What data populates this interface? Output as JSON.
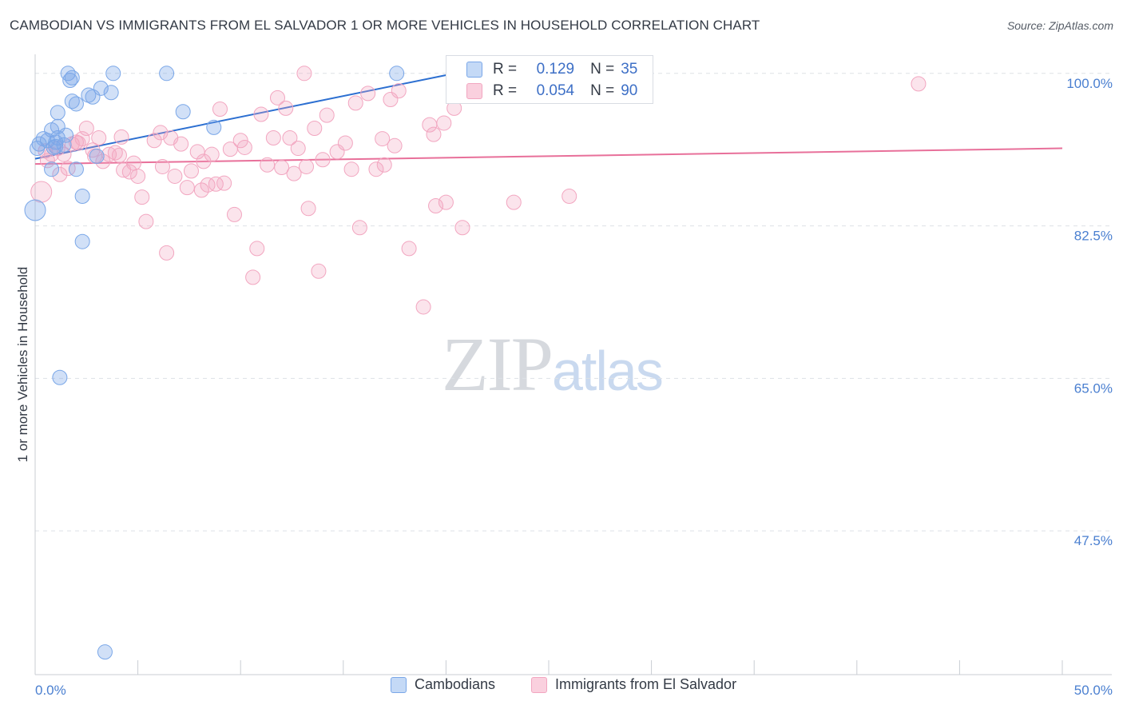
{
  "title": "CAMBODIAN VS IMMIGRANTS FROM EL SALVADOR 1 OR MORE VEHICLES IN HOUSEHOLD CORRELATION CHART",
  "source": "Source: ZipAtlas.com",
  "watermark": {
    "zip": "ZIP",
    "atlas": "atlas"
  },
  "chart_data": {
    "type": "scatter",
    "title": "CAMBODIAN VS IMMIGRANTS FROM EL SALVADOR 1 OR MORE VEHICLES IN HOUSEHOLD CORRELATION CHART",
    "xlabel": "",
    "ylabel": "1 or more Vehicles in Household",
    "xlim": [
      0,
      50
    ],
    "ylim": [
      31,
      102
    ],
    "x_tick_labels": [
      "0.0%",
      "50.0%"
    ],
    "y_ticks": [
      100,
      82.5,
      65,
      47.5
    ],
    "y_tick_labels": [
      "100.0%",
      "82.5%",
      "65.0%",
      "47.5%"
    ],
    "colors": {
      "Cambodians": "#7aa7e8",
      "Immigrants from El Salvador": "#f2a6c0",
      "Cambodians_line": "#2c6fd1",
      "Salvador_line": "#e8709a"
    },
    "series": [
      {
        "name": "Cambodians",
        "R": "0.129",
        "N": "35",
        "trend": {
          "x0": 0,
          "y0": 90.2,
          "x1": 20,
          "y1": 99.8
        },
        "points": [
          [
            0.2,
            91.9
          ],
          [
            0.4,
            92.5
          ],
          [
            0.6,
            92.3
          ],
          [
            0.8,
            93.5
          ],
          [
            0.9,
            91.5
          ],
          [
            1.0,
            92.1
          ],
          [
            1.1,
            92.6
          ],
          [
            0.8,
            89.0
          ],
          [
            1.0,
            91.6
          ],
          [
            1.1,
            93.9
          ],
          [
            1.1,
            95.5
          ],
          [
            1.4,
            91.8
          ],
          [
            1.5,
            92.9
          ],
          [
            1.6,
            100.0
          ],
          [
            1.7,
            99.2
          ],
          [
            1.8,
            96.8
          ],
          [
            1.8,
            99.5
          ],
          [
            2.0,
            96.5
          ],
          [
            2.0,
            89.0
          ],
          [
            2.3,
            85.9
          ],
          [
            2.3,
            80.7
          ],
          [
            2.6,
            97.5
          ],
          [
            2.8,
            97.3
          ],
          [
            3.2,
            98.3
          ],
          [
            3.7,
            97.8
          ],
          [
            3.8,
            100.0
          ],
          [
            6.4,
            100.0
          ],
          [
            7.2,
            95.6
          ],
          [
            8.7,
            93.8
          ],
          [
            17.6,
            100.0
          ],
          [
            1.2,
            65.1
          ],
          [
            3.4,
            33.6
          ],
          [
            0.0,
            84.3
          ],
          [
            3.0,
            90.5
          ],
          [
            0.1,
            91.4
          ]
        ]
      },
      {
        "name": "Immigrants from El Salvador",
        "R": "0.054",
        "N": "90",
        "trend": {
          "x0": 0,
          "y0": 89.6,
          "x1": 50,
          "y1": 91.4
        },
        "points": [
          [
            0.3,
            86.4
          ],
          [
            0.5,
            91.1
          ],
          [
            0.8,
            90.7
          ],
          [
            1.1,
            91.4
          ],
          [
            1.2,
            88.4
          ],
          [
            1.4,
            90.7
          ],
          [
            1.6,
            89.1
          ],
          [
            1.8,
            91.9
          ],
          [
            2.0,
            92.1
          ],
          [
            2.3,
            92.5
          ],
          [
            2.5,
            93.7
          ],
          [
            2.8,
            91.2
          ],
          [
            2.9,
            90.5
          ],
          [
            3.1,
            92.6
          ],
          [
            3.3,
            89.9
          ],
          [
            3.6,
            90.7
          ],
          [
            3.9,
            90.9
          ],
          [
            4.1,
            90.6
          ],
          [
            4.2,
            92.7
          ],
          [
            4.3,
            88.9
          ],
          [
            4.6,
            88.7
          ],
          [
            4.8,
            89.7
          ],
          [
            5.0,
            88.2
          ],
          [
            5.2,
            85.8
          ],
          [
            5.4,
            83.0
          ],
          [
            5.8,
            92.3
          ],
          [
            6.1,
            93.2
          ],
          [
            6.2,
            89.3
          ],
          [
            6.4,
            79.4
          ],
          [
            6.6,
            92.6
          ],
          [
            6.8,
            88.2
          ],
          [
            7.1,
            91.9
          ],
          [
            7.4,
            86.9
          ],
          [
            7.6,
            88.8
          ],
          [
            7.9,
            91.0
          ],
          [
            8.1,
            86.6
          ],
          [
            8.2,
            89.9
          ],
          [
            8.4,
            87.2
          ],
          [
            8.6,
            90.7
          ],
          [
            8.8,
            87.3
          ],
          [
            9.0,
            95.9
          ],
          [
            9.2,
            87.4
          ],
          [
            9.5,
            91.3
          ],
          [
            9.7,
            83.8
          ],
          [
            10.0,
            92.3
          ],
          [
            10.2,
            91.5
          ],
          [
            10.6,
            76.6
          ],
          [
            10.8,
            79.9
          ],
          [
            11.0,
            95.3
          ],
          [
            11.3,
            89.5
          ],
          [
            11.6,
            92.6
          ],
          [
            11.8,
            97.2
          ],
          [
            12.0,
            89.2
          ],
          [
            12.2,
            96.0
          ],
          [
            12.4,
            92.6
          ],
          [
            12.6,
            88.5
          ],
          [
            12.8,
            91.4
          ],
          [
            13.1,
            100.0
          ],
          [
            13.2,
            89.3
          ],
          [
            13.3,
            84.5
          ],
          [
            13.6,
            93.7
          ],
          [
            13.8,
            77.3
          ],
          [
            14.2,
            95.2
          ],
          [
            14.0,
            90.1
          ],
          [
            14.7,
            91.0
          ],
          [
            15.1,
            92.0
          ],
          [
            15.4,
            89.0
          ],
          [
            15.6,
            96.6
          ],
          [
            15.8,
            82.3
          ],
          [
            16.2,
            97.7
          ],
          [
            16.6,
            89.0
          ],
          [
            16.9,
            92.5
          ],
          [
            17.0,
            89.5
          ],
          [
            17.3,
            97.0
          ],
          [
            17.5,
            91.7
          ],
          [
            17.7,
            98.0
          ],
          [
            18.2,
            79.9
          ],
          [
            18.9,
            73.2
          ],
          [
            19.2,
            94.1
          ],
          [
            19.4,
            93.0
          ],
          [
            19.5,
            84.8
          ],
          [
            19.9,
            94.3
          ],
          [
            20.0,
            85.2
          ],
          [
            20.4,
            96.0
          ],
          [
            20.8,
            82.3
          ],
          [
            23.3,
            85.2
          ],
          [
            26.0,
            85.9
          ],
          [
            43.0,
            98.8
          ],
          [
            0.6,
            90.0
          ],
          [
            2.1,
            92.0
          ]
        ]
      }
    ]
  },
  "legend": {
    "items": [
      {
        "label": "Cambodians"
      },
      {
        "label": "Immigrants from El Salvador"
      }
    ]
  },
  "stats": {
    "r_label": "R =",
    "n_label": "N =",
    "rows": [
      {
        "r": "0.129",
        "n": "35"
      },
      {
        "r": "0.054",
        "n": "90"
      }
    ]
  }
}
